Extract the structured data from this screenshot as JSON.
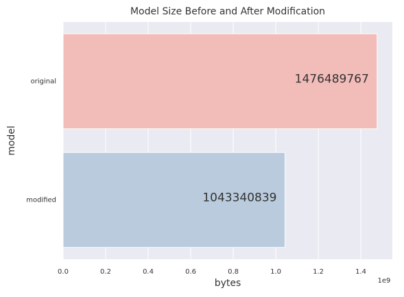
{
  "chart_data": {
    "type": "barh",
    "title": "Model Size Before and After Modification",
    "xlabel": "bytes",
    "ylabel": "model",
    "x_offset_label": "1e9",
    "categories": [
      "original",
      "modified"
    ],
    "values": [
      1476489767,
      1043340839
    ],
    "colors": [
      "#f2bcb9",
      "#b9cbdd"
    ],
    "label_colors": [
      "#8b3a3a",
      "#4a6a9a"
    ],
    "xlim": [
      0,
      1548000000
    ],
    "xticks": [
      {
        "value": 0,
        "label": "0.0"
      },
      {
        "value": 200000000,
        "label": "0.2"
      },
      {
        "value": 400000000,
        "label": "0.4"
      },
      {
        "value": 600000000,
        "label": "0.6"
      },
      {
        "value": 800000000,
        "label": "0.8"
      },
      {
        "value": 1000000000,
        "label": "1.0"
      },
      {
        "value": 1200000000,
        "label": "1.2"
      },
      {
        "value": 1400000000,
        "label": "1.4"
      }
    ],
    "grid": true
  }
}
